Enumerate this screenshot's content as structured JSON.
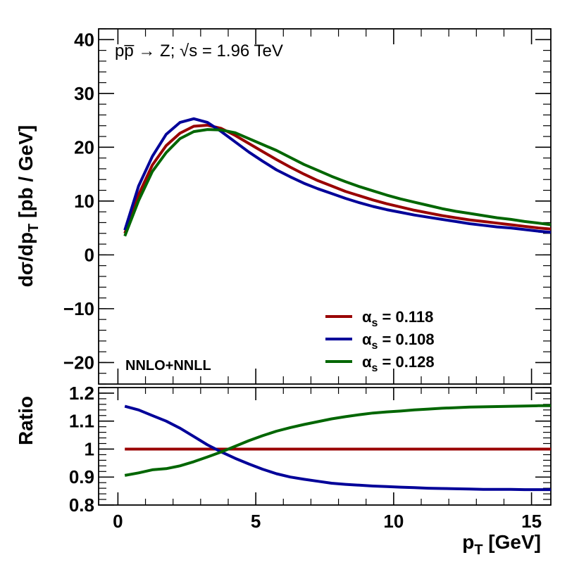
{
  "chart_data": [
    {
      "type": "line",
      "panel": "main",
      "ylabel_main": "dσ/dp",
      "ylabel_sub": "T",
      "ylabel_unit": " [pb / GeV]",
      "xlim": [
        -0.7,
        15.7
      ],
      "ylim": [
        -24,
        42
      ],
      "yticks": [
        -20,
        -10,
        0,
        10,
        20,
        30,
        40
      ],
      "ytick_labels": [
        "−20",
        "−10",
        "0",
        "10",
        "20",
        "30",
        "40"
      ],
      "annotation_text": "pp̅ → Z; √s = 1.96 TeV",
      "annotation_label": "NNLO+NNLL",
      "legend": {
        "symbol": "α",
        "sub": "s",
        "entries": [
          " = 0.118",
          " = 0.108",
          " = 0.128"
        ],
        "position": "bottom-right"
      },
      "x": [
        0.25,
        0.75,
        1.25,
        1.75,
        2.25,
        2.75,
        3.25,
        3.75,
        4.25,
        4.75,
        5.25,
        5.75,
        6.25,
        6.75,
        7.25,
        7.75,
        8.25,
        8.75,
        9.25,
        9.75,
        10.25,
        10.75,
        11.25,
        11.75,
        12.25,
        12.75,
        13.25,
        13.75,
        14.25,
        14.75,
        15.25,
        15.75
      ],
      "series": [
        {
          "color": "#990000",
          "values": [
            4.0,
            11.2,
            16.7,
            20.3,
            22.6,
            23.9,
            24.1,
            23.5,
            22.2,
            20.7,
            19.2,
            17.7,
            16.3,
            15.0,
            13.8,
            12.8,
            11.8,
            11.0,
            10.2,
            9.5,
            8.9,
            8.3,
            7.8,
            7.3,
            6.9,
            6.5,
            6.2,
            5.9,
            5.6,
            5.3,
            5.0,
            4.8
          ]
        },
        {
          "color": "#000099",
          "values": [
            4.6,
            12.8,
            18.3,
            22.4,
            24.6,
            25.3,
            24.6,
            22.9,
            21.0,
            19.1,
            17.4,
            15.8,
            14.5,
            13.3,
            12.3,
            11.4,
            10.5,
            9.7,
            9.0,
            8.4,
            7.9,
            7.4,
            7.0,
            6.6,
            6.2,
            5.8,
            5.5,
            5.2,
            5.0,
            4.7,
            4.4,
            4.2
          ]
        },
        {
          "color": "#006600",
          "values": [
            3.5,
            10.1,
            15.5,
            19.0,
            21.6,
            22.9,
            23.3,
            23.2,
            22.7,
            21.6,
            20.5,
            19.4,
            18.1,
            16.8,
            15.7,
            14.6,
            13.6,
            12.7,
            11.9,
            11.1,
            10.4,
            9.8,
            9.2,
            8.6,
            8.1,
            7.7,
            7.3,
            6.9,
            6.6,
            6.2,
            5.9,
            5.6
          ]
        }
      ]
    },
    {
      "type": "line",
      "panel": "ratio",
      "ylabel": "Ratio",
      "xlabel_main": "p",
      "xlabel_sub": "T",
      "xlabel_unit": " [GeV]",
      "xlim": [
        -0.7,
        15.7
      ],
      "ylim": [
        0.8,
        1.22
      ],
      "yticks": [
        0.8,
        0.9,
        1.0,
        1.1,
        1.2
      ],
      "ytick_labels": [
        "0.8",
        "0.9",
        "1",
        "1.1",
        "1.2"
      ],
      "xticks": [
        0,
        5,
        10,
        15
      ],
      "xtick_labels": [
        "0",
        "5",
        "10",
        "15"
      ],
      "x": [
        0.25,
        0.75,
        1.25,
        1.75,
        2.25,
        2.75,
        3.25,
        3.75,
        4.25,
        4.75,
        5.25,
        5.75,
        6.25,
        6.75,
        7.25,
        7.75,
        8.25,
        8.75,
        9.25,
        9.75,
        10.25,
        10.75,
        11.25,
        11.75,
        12.25,
        12.75,
        13.25,
        13.75,
        14.25,
        14.75,
        15.25,
        15.75
      ],
      "series": [
        {
          "color": "#990000",
          "values": [
            1.0,
            1.0,
            1.0,
            1.0,
            1.0,
            1.0,
            1.0,
            1.0,
            1.0,
            1.0,
            1.0,
            1.0,
            1.0,
            1.0,
            1.0,
            1.0,
            1.0,
            1.0,
            1.0,
            1.0,
            1.0,
            1.0,
            1.0,
            1.0,
            1.0,
            1.0,
            1.0,
            1.0,
            1.0,
            1.0,
            1.0,
            1.0
          ]
        },
        {
          "color": "#000099",
          "values": [
            1.153,
            1.14,
            1.12,
            1.1,
            1.075,
            1.045,
            1.015,
            0.99,
            0.967,
            0.947,
            0.928,
            0.912,
            0.9,
            0.892,
            0.885,
            0.878,
            0.874,
            0.871,
            0.868,
            0.866,
            0.864,
            0.862,
            0.86,
            0.859,
            0.858,
            0.857,
            0.856,
            0.856,
            0.856,
            0.855,
            0.855,
            0.855
          ]
        },
        {
          "color": "#006600",
          "values": [
            0.906,
            0.915,
            0.926,
            0.93,
            0.94,
            0.955,
            0.972,
            0.99,
            1.01,
            1.03,
            1.048,
            1.064,
            1.077,
            1.088,
            1.098,
            1.108,
            1.116,
            1.123,
            1.129,
            1.133,
            1.136,
            1.14,
            1.143,
            1.146,
            1.148,
            1.15,
            1.151,
            1.152,
            1.153,
            1.154,
            1.155,
            1.155
          ]
        }
      ]
    }
  ]
}
